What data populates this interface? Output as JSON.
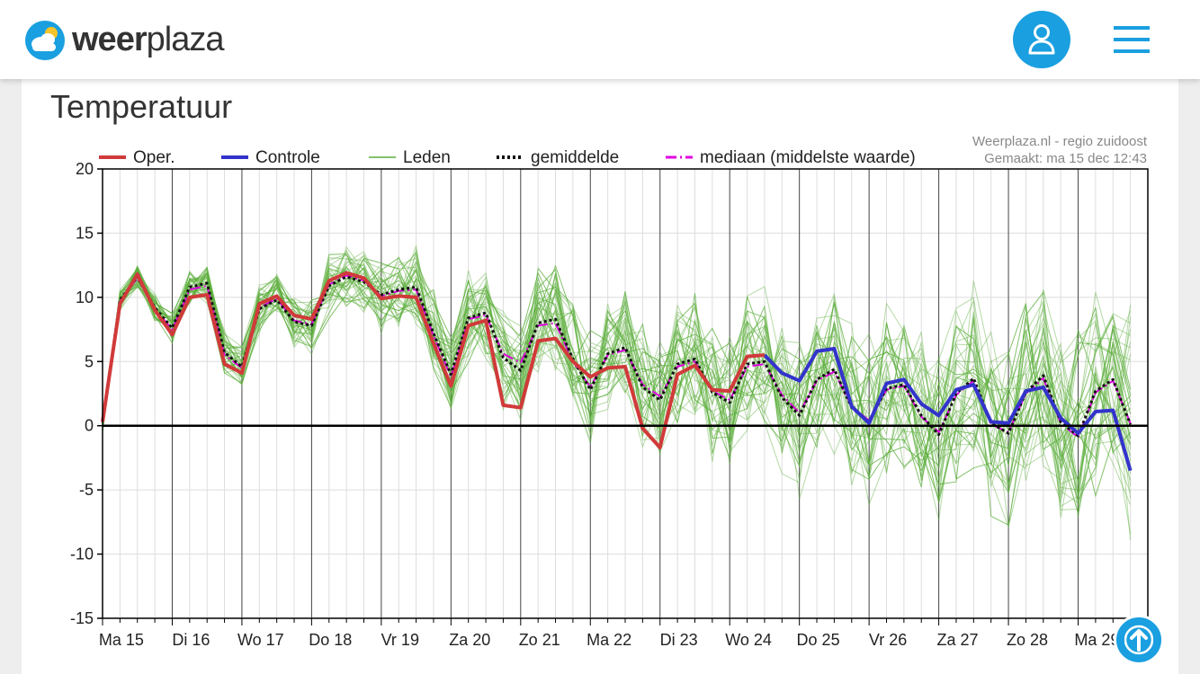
{
  "header": {
    "logo_bold": "weer",
    "logo_light": "plaza"
  },
  "card": {
    "title": "Temperatuur"
  },
  "colors": {
    "brand": "#1a9fe0",
    "oper": "#d13a3a",
    "controle": "#3333cc",
    "leden": "#5aae3a",
    "mediaan": "#e000e0"
  },
  "chart_data": {
    "type": "line",
    "source": "Weerplaza.nl - regio zuidoost",
    "made": "Gemaakt: ma 15 dec 12:43",
    "legend": [
      "Oper.",
      "Controle",
      "Leden",
      "gemiddelde",
      "mediaan (middelste waarde)"
    ],
    "ylim": [
      -15,
      20
    ],
    "yticks": [
      20,
      15,
      10,
      5,
      0,
      -5,
      -10,
      -15
    ],
    "x_days": [
      "Ma 15",
      "Di 16",
      "Wo 17",
      "Do 18",
      "Vr 19",
      "Za 20",
      "Zo 21",
      "Ma 22",
      "Di 23",
      "Wo 24",
      "Do 25",
      "Vr 26",
      "Za 27",
      "Zo 28",
      "Ma 29"
    ],
    "grid": true,
    "series": [
      {
        "name": "Oper.",
        "x": [
          0,
          0.25,
          0.5,
          0.75,
          1,
          1.25,
          1.5,
          1.75,
          2,
          2.25,
          2.5,
          2.75,
          3,
          3.25,
          3.5,
          3.75,
          4,
          4.25,
          4.5,
          4.75,
          5,
          5.25,
          5.5,
          5.75,
          6,
          6.25,
          6.5,
          6.75,
          7,
          7.25,
          7.5,
          7.75,
          8,
          8.25,
          8.5,
          8.75,
          9,
          9.25,
          9.5
        ],
        "values": [
          0.3,
          9.5,
          11.8,
          9,
          7.1,
          10,
          10.2,
          4.8,
          4.1,
          9.5,
          10.1,
          8.6,
          8.3,
          11.3,
          11.9,
          11.5,
          9.9,
          10.1,
          10,
          6.4,
          3.1,
          7.8,
          8.2,
          1.6,
          1.4,
          6.6,
          6.8,
          5,
          3.8,
          4.5,
          4.6,
          -0.2,
          -1.7,
          4,
          4.7,
          2.8,
          2.7,
          5.4,
          5.5
        ]
      },
      {
        "name": "Controle",
        "x": [
          9.5,
          9.75,
          10,
          10.25,
          10.5,
          10.75,
          11,
          11.25,
          11.5,
          11.75,
          12,
          12.25,
          12.5,
          12.75,
          13,
          13.25,
          13.5,
          13.75,
          14,
          14.25,
          14.5,
          14.75
        ],
        "values": [
          5.5,
          4.1,
          3.5,
          5.8,
          6,
          1.5,
          0.2,
          3.3,
          3.6,
          1.7,
          0.8,
          2.8,
          3.2,
          0.3,
          0.2,
          2.7,
          3,
          0.6,
          -0.6,
          1.1,
          1.2,
          -3.5
        ]
      },
      {
        "name": "gemiddelde",
        "x": [
          0,
          0.25,
          0.5,
          0.75,
          1,
          1.25,
          1.5,
          1.75,
          2,
          2.25,
          2.5,
          2.75,
          3,
          3.25,
          3.5,
          3.75,
          4,
          4.25,
          4.5,
          4.75,
          5,
          5.25,
          5.5,
          5.75,
          6,
          6.25,
          6.5,
          6.75,
          7,
          7.25,
          7.5,
          7.75,
          8,
          8.25,
          8.5,
          8.75,
          9,
          9.25,
          9.5,
          9.75,
          10,
          10.25,
          10.5,
          10.75,
          11,
          11.25,
          11.5,
          11.75,
          12,
          12.25,
          12.5,
          12.75,
          13,
          13.25,
          13.5,
          13.75,
          14,
          14.25,
          14.5,
          14.75
        ],
        "values": [
          0.3,
          9.8,
          11.6,
          9.2,
          7.6,
          10.8,
          11.1,
          5.7,
          4.6,
          9.1,
          9.8,
          8.1,
          7.8,
          10.9,
          11.6,
          11.2,
          10.2,
          10.6,
          10.8,
          7.2,
          4,
          8.4,
          8.8,
          5.3,
          4.3,
          8,
          8.3,
          5.2,
          2.8,
          5.6,
          6.1,
          3,
          2,
          4.8,
          5.2,
          2.6,
          1.8,
          4.8,
          5,
          2.2,
          0.8,
          3.6,
          4.4,
          1.4,
          0.3,
          2.9,
          3.2,
          0.8,
          -0.7,
          2.5,
          3.7,
          0.2,
          -0.6,
          2.6,
          3.9,
          0.3,
          -0.8,
          2.7,
          3.6,
          0.1
        ]
      },
      {
        "name": "mediaan (middelste waarde)",
        "x": [
          0,
          0.25,
          0.5,
          0.75,
          1,
          1.25,
          1.5,
          1.75,
          2,
          2.25,
          2.5,
          2.75,
          3,
          3.25,
          3.5,
          3.75,
          4,
          4.25,
          4.5,
          4.75,
          5,
          5.25,
          5.5,
          5.75,
          6,
          6.25,
          6.5,
          6.75,
          7,
          7.25,
          7.5,
          7.75,
          8,
          8.25,
          8.5,
          8.75,
          9,
          9.25,
          9.5,
          9.75,
          10,
          10.25,
          10.5,
          10.75,
          11,
          11.25,
          11.5,
          11.75,
          12,
          12.25,
          12.5,
          12.75,
          13,
          13.25,
          13.5,
          13.75,
          14,
          14.25,
          14.5,
          14.75
        ],
        "values": [
          0.3,
          9.7,
          11.5,
          9.1,
          7.5,
          10.6,
          10.9,
          5.5,
          4.5,
          9.2,
          9.9,
          8.2,
          7.9,
          11,
          11.7,
          11.3,
          10.1,
          10.5,
          10.6,
          7,
          3.8,
          8.3,
          8.6,
          5.6,
          4.9,
          7.8,
          8,
          5,
          3,
          5.5,
          5.9,
          3.2,
          2.3,
          4.6,
          5,
          2.7,
          2,
          4.6,
          4.8,
          2.4,
          1,
          3.5,
          4.2,
          1.5,
          0.4,
          2.8,
          3.1,
          0.7,
          -0.5,
          2.4,
          3.5,
          0.1,
          -0.5,
          2.5,
          3.7,
          0.2,
          -0.9,
          2.6,
          3.5,
          0.2
        ]
      }
    ]
  }
}
